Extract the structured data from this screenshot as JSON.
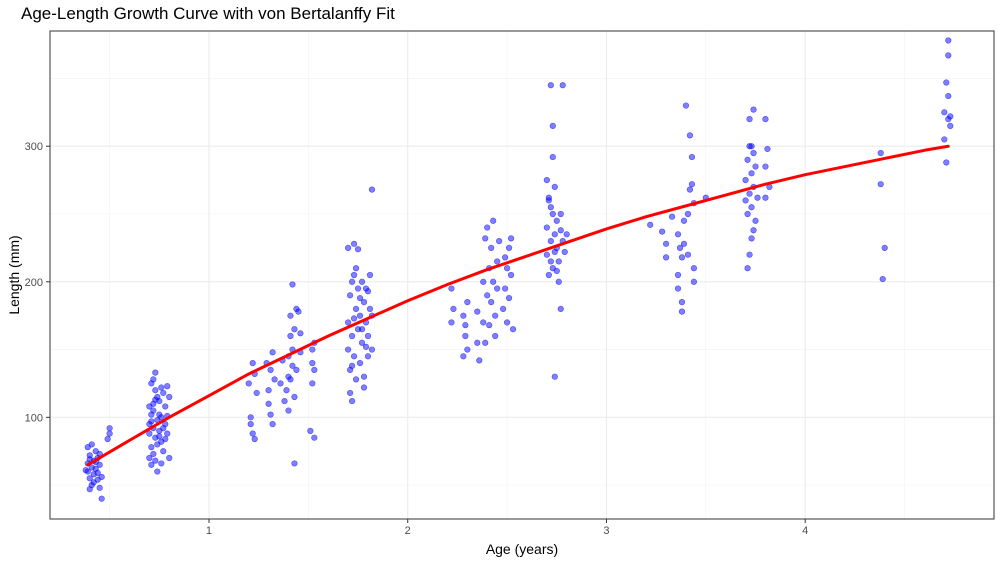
{
  "chart_data": {
    "type": "scatter",
    "title": "Age-Length Growth Curve with von Bertalanffy Fit",
    "xlabel": "Age (years)",
    "ylabel": "Length (mm)",
    "xlim": [
      0.2,
      4.95
    ],
    "ylim": [
      25,
      385
    ],
    "x_ticks": [
      1,
      2,
      3,
      4
    ],
    "y_ticks": [
      100,
      200,
      300
    ],
    "grid": true,
    "point_color": "#0000FF",
    "point_opacity": 0.5,
    "curve_color": "#FF0000",
    "series": [
      {
        "type": "scatter",
        "points": [
          [
            0.39,
            66
          ],
          [
            0.39,
            60
          ],
          [
            0.4,
            72
          ],
          [
            0.4,
            55
          ],
          [
            0.41,
            63
          ],
          [
            0.41,
            50
          ],
          [
            0.42,
            68
          ],
          [
            0.42,
            58
          ],
          [
            0.43,
            75
          ],
          [
            0.43,
            62
          ],
          [
            0.44,
            54
          ],
          [
            0.44,
            70
          ],
          [
            0.45,
            48
          ],
          [
            0.45,
            65
          ],
          [
            0.39,
            78
          ],
          [
            0.4,
            47
          ],
          [
            0.46,
            40
          ],
          [
            0.41,
            80
          ],
          [
            0.44,
            59
          ],
          [
            0.43,
            67
          ],
          [
            0.42,
            52
          ],
          [
            0.45,
            73
          ],
          [
            0.4,
            69
          ],
          [
            0.46,
            56
          ],
          [
            0.38,
            61
          ],
          [
            0.5,
            88
          ],
          [
            0.5,
            92
          ],
          [
            0.49,
            84
          ],
          [
            0.7,
            95
          ],
          [
            0.7,
            88
          ],
          [
            0.71,
            102
          ],
          [
            0.71,
            78
          ],
          [
            0.72,
            110
          ],
          [
            0.72,
            92
          ],
          [
            0.73,
            120
          ],
          [
            0.73,
            85
          ],
          [
            0.74,
            98
          ],
          [
            0.74,
            115
          ],
          [
            0.7,
            70
          ],
          [
            0.71,
            65
          ],
          [
            0.72,
            128
          ],
          [
            0.73,
            133
          ],
          [
            0.74,
            60
          ],
          [
            0.72,
            105
          ],
          [
            0.75,
            112
          ],
          [
            0.75,
            90
          ],
          [
            0.76,
            82
          ],
          [
            0.76,
            100
          ],
          [
            0.77,
            118
          ],
          [
            0.77,
            75
          ],
          [
            0.78,
            95
          ],
          [
            0.78,
            108
          ],
          [
            0.79,
            123
          ],
          [
            0.79,
            88
          ],
          [
            0.8,
            70
          ],
          [
            0.8,
            115
          ],
          [
            0.71,
            125
          ],
          [
            0.73,
            68
          ],
          [
            0.75,
            102
          ],
          [
            0.76,
            122
          ],
          [
            0.77,
            92
          ],
          [
            0.7,
            108
          ],
          [
            0.74,
            80
          ],
          [
            0.78,
            84
          ],
          [
            0.72,
            73
          ],
          [
            0.71,
            97
          ],
          [
            0.79,
            101
          ],
          [
            0.73,
            113
          ],
          [
            0.75,
            86
          ],
          [
            0.76,
            66
          ],
          [
            1.21,
            95
          ],
          [
            1.22,
            88
          ],
          [
            1.23,
            132
          ],
          [
            1.22,
            140
          ],
          [
            1.24,
            118
          ],
          [
            1.2,
            125
          ],
          [
            1.23,
            84
          ],
          [
            1.21,
            100
          ],
          [
            1.3,
            120
          ],
          [
            1.31,
            135
          ],
          [
            1.32,
            148
          ],
          [
            1.3,
            110
          ],
          [
            1.33,
            128
          ],
          [
            1.31,
            102
          ],
          [
            1.29,
            140
          ],
          [
            1.32,
            95
          ],
          [
            1.4,
            145
          ],
          [
            1.4,
            130
          ],
          [
            1.41,
            160
          ],
          [
            1.42,
            150
          ],
          [
            1.39,
            120
          ],
          [
            1.4,
            105
          ],
          [
            1.41,
            175
          ],
          [
            1.42,
            138
          ],
          [
            1.43,
            165
          ],
          [
            1.44,
            180
          ],
          [
            1.43,
            115
          ],
          [
            1.41,
            128
          ],
          [
            1.45,
            178
          ],
          [
            1.46,
            162
          ],
          [
            1.46,
            148
          ],
          [
            1.44,
            135
          ],
          [
            1.42,
            198
          ],
          [
            1.43,
            66
          ],
          [
            1.38,
            112
          ],
          [
            1.37,
            142
          ],
          [
            1.36,
            125
          ],
          [
            1.52,
            150
          ],
          [
            1.53,
            155
          ],
          [
            1.52,
            140
          ],
          [
            1.53,
            85
          ],
          [
            1.52,
            125
          ],
          [
            1.51,
            90
          ],
          [
            1.53,
            135
          ],
          [
            1.7,
            170
          ],
          [
            1.7,
            150
          ],
          [
            1.71,
            190
          ],
          [
            1.71,
            135
          ],
          [
            1.72,
            200
          ],
          [
            1.72,
            160
          ],
          [
            1.73,
            205
          ],
          [
            1.73,
            145
          ],
          [
            1.74,
            180
          ],
          [
            1.74,
            128
          ],
          [
            1.7,
            225
          ],
          [
            1.73,
            228
          ],
          [
            1.72,
            112
          ],
          [
            1.75,
            195
          ],
          [
            1.75,
            165
          ],
          [
            1.76,
            175
          ],
          [
            1.76,
            140
          ],
          [
            1.77,
            200
          ],
          [
            1.77,
            155
          ],
          [
            1.78,
            185
          ],
          [
            1.78,
            130
          ],
          [
            1.79,
            170
          ],
          [
            1.79,
            195
          ],
          [
            1.8,
            160
          ],
          [
            1.8,
            145
          ],
          [
            1.81,
            180
          ],
          [
            1.81,
            205
          ],
          [
            1.82,
            150
          ],
          [
            1.82,
            175
          ],
          [
            1.82,
            268
          ],
          [
            1.75,
            224
          ],
          [
            1.71,
            118
          ],
          [
            1.74,
            210
          ],
          [
            1.76,
            188
          ],
          [
            1.78,
            122
          ],
          [
            1.8,
            193
          ],
          [
            1.72,
            138
          ],
          [
            1.73,
            173
          ],
          [
            1.77,
            165
          ],
          [
            1.79,
            152
          ],
          [
            2.22,
            195
          ],
          [
            2.23,
            180
          ],
          [
            2.22,
            170
          ],
          [
            2.28,
            175
          ],
          [
            2.29,
            160
          ],
          [
            2.3,
            150
          ],
          [
            2.28,
            145
          ],
          [
            2.29,
            168
          ],
          [
            2.3,
            185
          ],
          [
            2.35,
            155
          ],
          [
            2.35,
            178
          ],
          [
            2.36,
            142
          ],
          [
            2.38,
            200
          ],
          [
            2.38,
            170
          ],
          [
            2.39,
            232
          ],
          [
            2.4,
            240
          ],
          [
            2.41,
            210
          ],
          [
            2.4,
            190
          ],
          [
            2.42,
            225
          ],
          [
            2.42,
            185
          ],
          [
            2.43,
            245
          ],
          [
            2.43,
            200
          ],
          [
            2.44,
            160
          ],
          [
            2.44,
            175
          ],
          [
            2.45,
            215
          ],
          [
            2.45,
            195
          ],
          [
            2.46,
            230
          ],
          [
            2.41,
            168
          ],
          [
            2.39,
            155
          ],
          [
            2.48,
            180
          ],
          [
            2.49,
            195
          ],
          [
            2.5,
            170
          ],
          [
            2.5,
            210
          ],
          [
            2.51,
            225
          ],
          [
            2.51,
            188
          ],
          [
            2.52,
            205
          ],
          [
            2.52,
            232
          ],
          [
            2.53,
            165
          ],
          [
            2.49,
            218
          ],
          [
            2.7,
            220
          ],
          [
            2.7,
            240
          ],
          [
            2.71,
            205
          ],
          [
            2.71,
            260
          ],
          [
            2.72,
            230
          ],
          [
            2.72,
            215
          ],
          [
            2.73,
            250
          ],
          [
            2.73,
            210
          ],
          [
            2.74,
            235
          ],
          [
            2.74,
            270
          ],
          [
            2.7,
            275
          ],
          [
            2.72,
            345
          ],
          [
            2.73,
            315
          ],
          [
            2.74,
            130
          ],
          [
            2.73,
            292
          ],
          [
            2.75,
            225
          ],
          [
            2.75,
            245
          ],
          [
            2.76,
            215
          ],
          [
            2.76,
            200
          ],
          [
            2.77,
            238
          ],
          [
            2.77,
            180
          ],
          [
            2.78,
            230
          ],
          [
            2.78,
            345
          ],
          [
            2.71,
            262
          ],
          [
            2.74,
            222
          ],
          [
            2.79,
            222
          ],
          [
            2.8,
            235
          ],
          [
            2.75,
            208
          ],
          [
            2.72,
            255
          ],
          [
            2.77,
            250
          ],
          [
            3.22,
            242
          ],
          [
            3.28,
            237
          ],
          [
            3.3,
            228
          ],
          [
            3.3,
            218
          ],
          [
            3.33,
            248
          ],
          [
            3.36,
            235
          ],
          [
            3.36,
            205
          ],
          [
            3.36,
            195
          ],
          [
            3.37,
            225
          ],
          [
            3.38,
            185
          ],
          [
            3.38,
            178
          ],
          [
            3.39,
            245
          ],
          [
            3.39,
            228
          ],
          [
            3.4,
            330
          ],
          [
            3.41,
            250
          ],
          [
            3.41,
            220
          ],
          [
            3.42,
            268
          ],
          [
            3.42,
            308
          ],
          [
            3.43,
            272
          ],
          [
            3.43,
            292
          ],
          [
            3.44,
            258
          ],
          [
            3.44,
            200
          ],
          [
            3.44,
            210
          ],
          [
            3.5,
            262
          ],
          [
            3.38,
            218
          ],
          [
            3.7,
            260
          ],
          [
            3.7,
            275
          ],
          [
            3.71,
            290
          ],
          [
            3.71,
            250
          ],
          [
            3.72,
            300
          ],
          [
            3.72,
            265
          ],
          [
            3.73,
            280
          ],
          [
            3.73,
            255
          ],
          [
            3.74,
            295
          ],
          [
            3.74,
            270
          ],
          [
            3.75,
            245
          ],
          [
            3.75,
            285
          ],
          [
            3.72,
            320
          ],
          [
            3.74,
            327
          ],
          [
            3.73,
            232
          ],
          [
            3.71,
            210
          ],
          [
            3.76,
            262
          ],
          [
            3.72,
            220
          ],
          [
            3.8,
            262
          ],
          [
            3.8,
            285
          ],
          [
            3.8,
            320
          ],
          [
            3.81,
            298
          ],
          [
            3.82,
            270
          ],
          [
            3.73,
            300
          ],
          [
            3.74,
            238
          ],
          [
            4.38,
            295
          ],
          [
            4.38,
            272
          ],
          [
            4.39,
            202
          ],
          [
            4.4,
            225
          ],
          [
            4.7,
            305
          ],
          [
            4.7,
            325
          ],
          [
            4.71,
            288
          ],
          [
            4.71,
            347
          ],
          [
            4.72,
            378
          ],
          [
            4.72,
            367
          ],
          [
            4.72,
            337
          ],
          [
            4.72,
            320
          ],
          [
            4.73,
            315
          ],
          [
            4.73,
            322
          ]
        ]
      },
      {
        "type": "line",
        "name": "von Bertalanffy fit",
        "points": [
          [
            0.39,
            65
          ],
          [
            0.6,
            83
          ],
          [
            0.8,
            100
          ],
          [
            1.0,
            116
          ],
          [
            1.2,
            132
          ],
          [
            1.4,
            146
          ],
          [
            1.6,
            160
          ],
          [
            1.8,
            173
          ],
          [
            2.0,
            186
          ],
          [
            2.2,
            198
          ],
          [
            2.4,
            209
          ],
          [
            2.6,
            219
          ],
          [
            2.8,
            229
          ],
          [
            3.0,
            239
          ],
          [
            3.2,
            248
          ],
          [
            3.4,
            256
          ],
          [
            3.6,
            264
          ],
          [
            3.8,
            272
          ],
          [
            4.0,
            279
          ],
          [
            4.2,
            285
          ],
          [
            4.4,
            291
          ],
          [
            4.6,
            297
          ],
          [
            4.72,
            300
          ]
        ]
      }
    ]
  }
}
